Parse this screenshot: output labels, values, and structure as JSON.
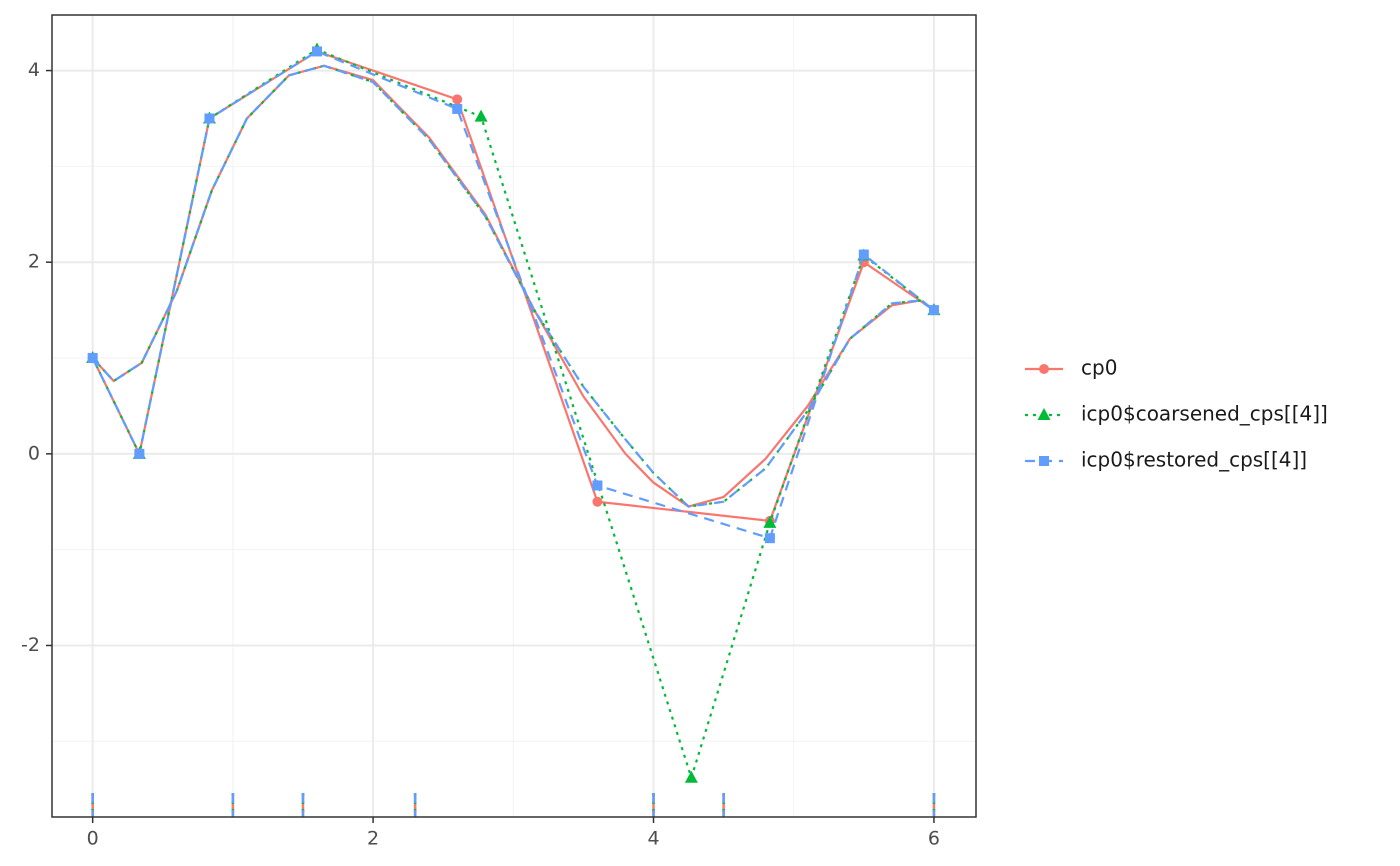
{
  "chart_data": {
    "type": "line",
    "xlim": [
      -0.29,
      6.3
    ],
    "ylim": [
      -3.79,
      4.58
    ],
    "xticks": [
      0,
      2,
      4,
      6
    ],
    "yticks": [
      -2,
      0,
      2,
      4
    ],
    "grid": true,
    "legend": "right",
    "knots": [
      0,
      1,
      1.5,
      2.3,
      4,
      4.5,
      6
    ],
    "series": [
      {
        "name": "cp0",
        "color": "#f8766d",
        "linetype": "solid",
        "marker": "circle",
        "x": [
          0,
          0.333,
          0.833,
          1.6,
          2.6,
          3.6,
          4.83,
          5.5,
          6
        ],
        "values": [
          1,
          0,
          3.5,
          4.2,
          3.7,
          -0.5,
          -0.7,
          2.0,
          1.5
        ],
        "curve_x": [
          0,
          0.15,
          0.35,
          0.6,
          0.85,
          1.1,
          1.4,
          1.65,
          2.0,
          2.4,
          2.8,
          3.15,
          3.5,
          3.8,
          4.0,
          4.25,
          4.5,
          4.8,
          5.1,
          5.4,
          5.7,
          5.9,
          6.0
        ],
        "curve_values": [
          1.0,
          0.76,
          0.95,
          1.7,
          2.75,
          3.5,
          3.95,
          4.05,
          3.9,
          3.3,
          2.5,
          1.5,
          0.6,
          0.0,
          -0.3,
          -0.55,
          -0.45,
          -0.05,
          0.5,
          1.2,
          1.55,
          1.6,
          1.5
        ]
      },
      {
        "name": "icp0$coarsened_cps[[4]]",
        "color": "#00ba38",
        "linetype": "dotted",
        "marker": "triangle",
        "x": [
          0,
          0.333,
          0.833,
          1.6,
          2.77,
          4.27,
          4.83,
          5.5,
          6
        ],
        "values": [
          1,
          0,
          3.5,
          4.22,
          3.52,
          -3.38,
          -0.72,
          2.07,
          1.5
        ],
        "curve_x": [
          0,
          0.15,
          0.35,
          0.6,
          0.85,
          1.1,
          1.4,
          1.65,
          2.0,
          2.4,
          2.8,
          3.15,
          3.5,
          3.8,
          4.0,
          4.25,
          4.5,
          4.8,
          5.1,
          5.4,
          5.7,
          5.9,
          6.0
        ],
        "curve_values": [
          1.0,
          0.76,
          0.95,
          1.7,
          2.75,
          3.5,
          3.95,
          4.05,
          3.88,
          3.28,
          2.48,
          1.5,
          0.7,
          0.15,
          -0.2,
          -0.55,
          -0.5,
          -0.15,
          0.45,
          1.2,
          1.57,
          1.6,
          1.5
        ]
      },
      {
        "name": "icp0$restored_cps[[4]]",
        "color": "#619cff",
        "linetype": "dashed",
        "marker": "square",
        "x": [
          0,
          0.333,
          0.833,
          1.6,
          2.6,
          3.6,
          4.83,
          5.5,
          6
        ],
        "values": [
          1,
          0,
          3.5,
          4.2,
          3.6,
          -0.33,
          -0.88,
          2.08,
          1.5
        ],
        "curve_x": [
          0,
          0.15,
          0.35,
          0.6,
          0.85,
          1.1,
          1.4,
          1.65,
          2.0,
          2.4,
          2.8,
          3.15,
          3.5,
          3.8,
          4.0,
          4.25,
          4.5,
          4.8,
          5.1,
          5.4,
          5.7,
          5.9,
          6.0
        ],
        "curve_values": [
          1.0,
          0.76,
          0.95,
          1.7,
          2.75,
          3.5,
          3.95,
          4.05,
          3.88,
          3.28,
          2.48,
          1.5,
          0.7,
          0.15,
          -0.2,
          -0.55,
          -0.5,
          -0.15,
          0.45,
          1.2,
          1.57,
          1.6,
          1.5
        ]
      }
    ]
  }
}
